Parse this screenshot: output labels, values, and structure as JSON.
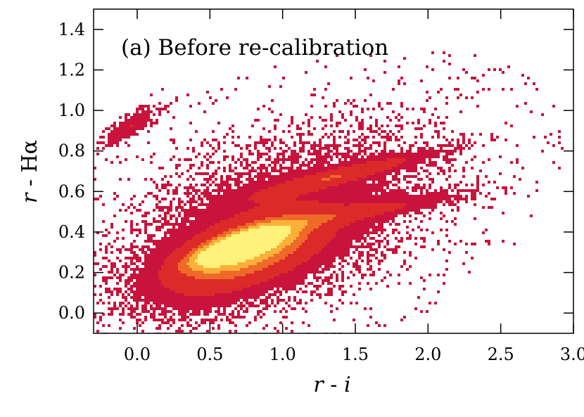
{
  "chart_data": {
    "type": "heatmap",
    "title": "",
    "annotation": "(a) Before re-calibration",
    "xlabel_var1": "r",
    "xlabel_sep": " - ",
    "xlabel_var2": "i",
    "ylabel_var1": "r",
    "ylabel_sep": " - ",
    "ylabel_var2": "Hα",
    "xlim": [
      -0.3,
      3.0
    ],
    "ylim": [
      -0.1,
      1.5
    ],
    "x_ticks": [
      0.0,
      0.5,
      1.0,
      1.5,
      2.0,
      2.5,
      3.0
    ],
    "x_tick_labels": [
      "0.0",
      "0.5",
      "1.0",
      "1.5",
      "2.0",
      "2.5",
      "3.0"
    ],
    "y_ticks": [
      0.0,
      0.2,
      0.4,
      0.6,
      0.8,
      1.0,
      1.2,
      1.4
    ],
    "y_tick_labels": [
      "0.0",
      "0.2",
      "0.4",
      "0.6",
      "0.8",
      "1.0",
      "1.2",
      "1.4"
    ],
    "colormap": [
      "#c8143c",
      "#dc2a28",
      "#ee6a28",
      "#fbb03a",
      "#fff27a"
    ],
    "density_components": [
      {
        "name": "main-locus",
        "cx": 0.75,
        "cy": 0.3,
        "sx": 0.35,
        "sy": 0.13,
        "rho": 0.6,
        "weight": 1.0
      },
      {
        "name": "core",
        "cx": 0.7,
        "cy": 0.33,
        "sx": 0.2,
        "sy": 0.06,
        "rho": 0.75,
        "weight": 1.6
      },
      {
        "name": "upper-branch",
        "cx": 1.4,
        "cy": 0.68,
        "sx": 0.38,
        "sy": 0.07,
        "rho": 0.92,
        "weight": 0.55
      },
      {
        "name": "lower-branch",
        "cx": 1.55,
        "cy": 0.5,
        "sx": 0.42,
        "sy": 0.06,
        "rho": 0.88,
        "weight": 0.35
      },
      {
        "name": "wide-halo",
        "cx": 0.95,
        "cy": 0.45,
        "sx": 0.65,
        "sy": 0.28,
        "rho": 0.45,
        "weight": 0.22
      },
      {
        "name": "upper-left-streak",
        "cx": -0.05,
        "cy": 0.92,
        "sx": 0.12,
        "sy": 0.06,
        "rho": 0.8,
        "weight": 0.35
      }
    ]
  }
}
